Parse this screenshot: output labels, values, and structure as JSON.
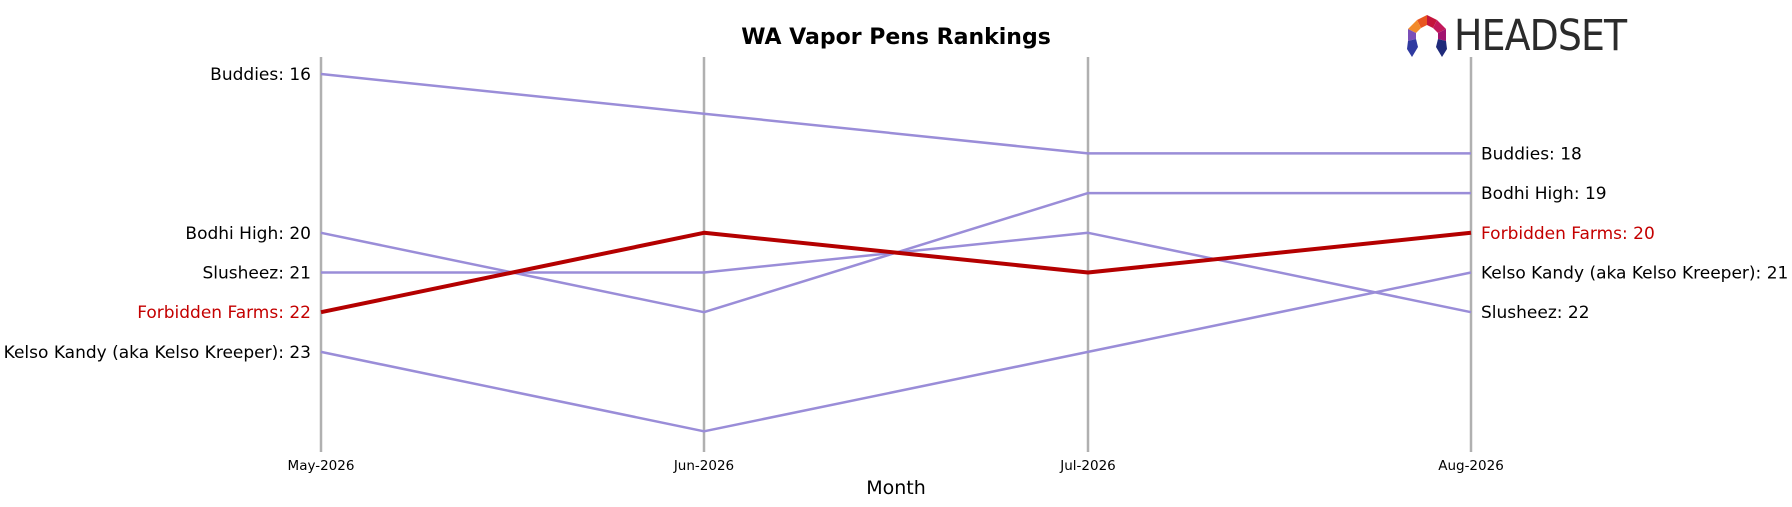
{
  "logo": {
    "wordmark": "HEADSET"
  },
  "colors": {
    "highlight": "#b40000",
    "other": "#9a8dd8",
    "gridline": "#b0b0b0",
    "highlight_label": "#c40000",
    "label": "#000000"
  },
  "chart_data": {
    "type": "line",
    "title": "WA Vapor Pens Rankings",
    "xlabel": "Month",
    "ylabel": "",
    "x": [
      "May-2026",
      "Jun-2026",
      "Jul-2026",
      "Aug-2026"
    ],
    "y_inverted": true,
    "ylim": [
      14,
      26
    ],
    "grid": "vertical lines at each month",
    "highlight_series": "Forbidden Farms",
    "series": [
      {
        "name": "Buddies",
        "values": [
          16,
          17,
          18,
          18
        ],
        "start_label": "Buddies: 16",
        "end_label": "Buddies: 18"
      },
      {
        "name": "Bodhi High",
        "values": [
          20,
          22,
          19,
          19
        ],
        "start_label": "Bodhi High: 20",
        "end_label": "Bodhi High: 19"
      },
      {
        "name": "Slusheez",
        "values": [
          21,
          21,
          20,
          22
        ],
        "start_label": "Slusheez: 21",
        "end_label": "Slusheez: 22"
      },
      {
        "name": "Kelso Kandy (aka Kelso Kreeper)",
        "values": [
          23,
          25,
          23,
          21
        ],
        "start_label": "Kelso Kandy (aka Kelso Kreeper): 23",
        "end_label": "Kelso Kandy (aka Kelso Kreeper): 21"
      },
      {
        "name": "Forbidden Farms",
        "values": [
          22,
          20,
          21,
          20
        ],
        "start_label": "Forbidden Farms: 22",
        "end_label": "Forbidden Farms: 20"
      }
    ]
  }
}
